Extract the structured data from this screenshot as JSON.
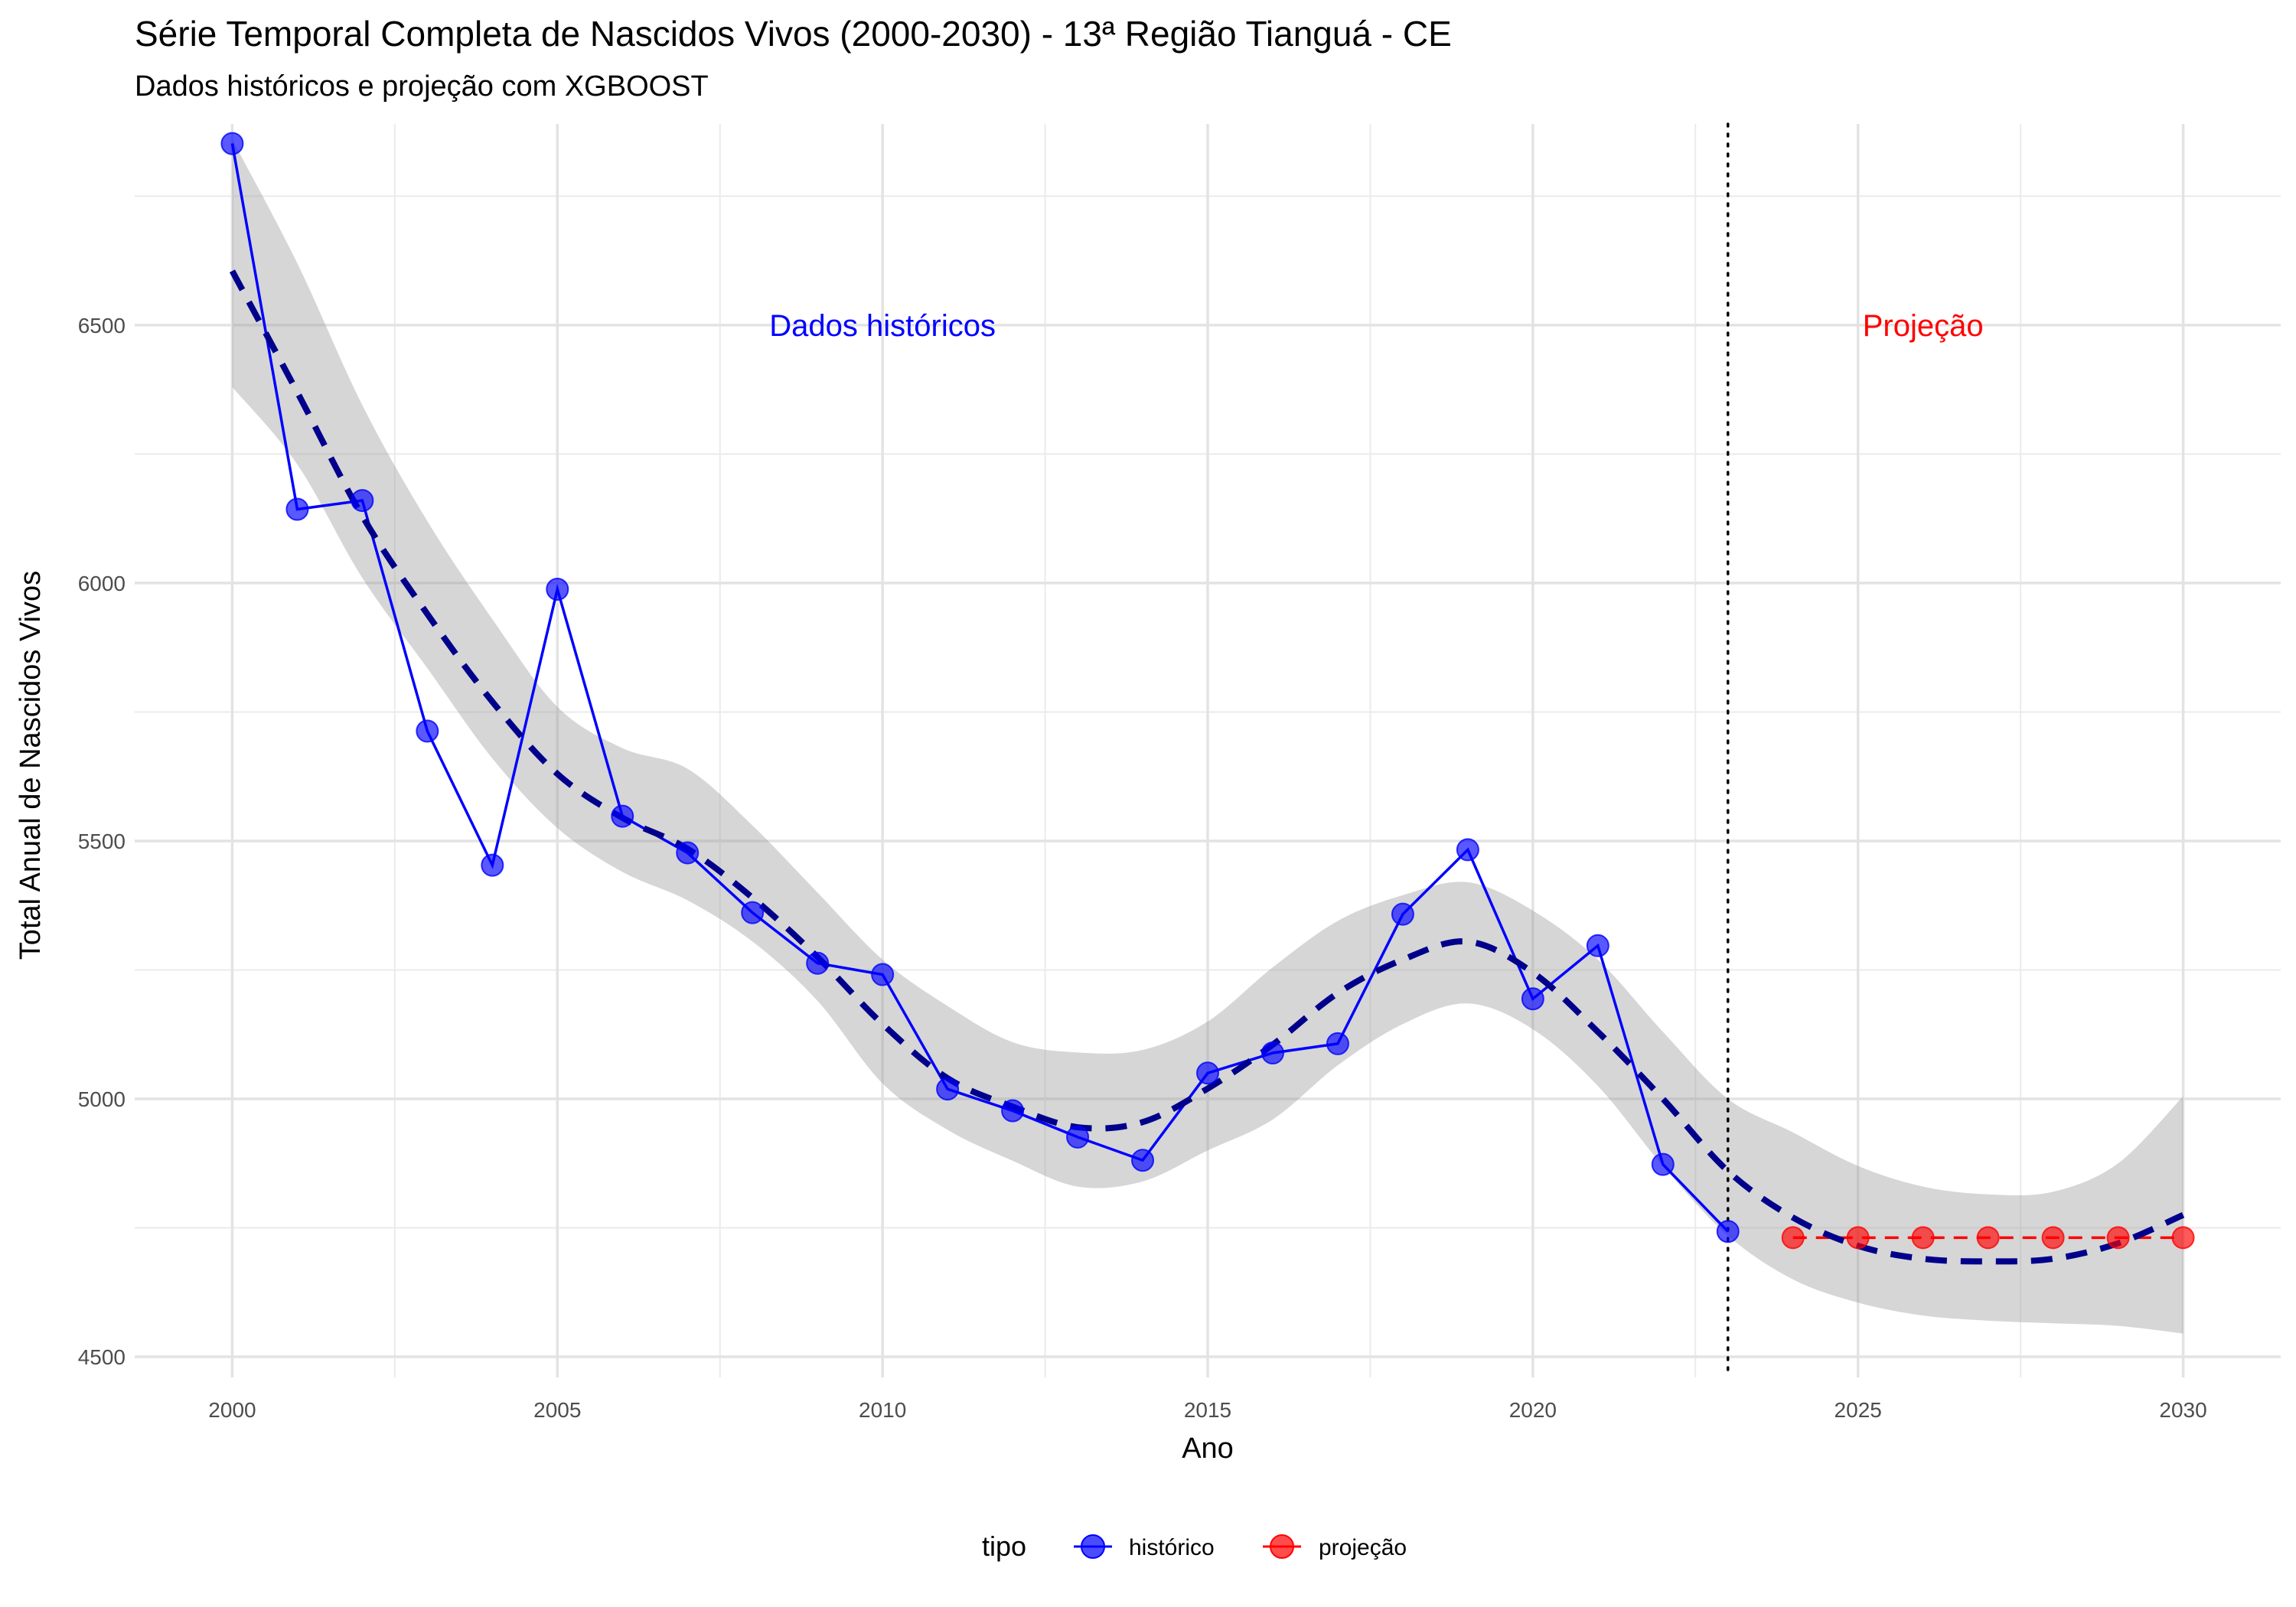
{
  "chart_data": {
    "type": "line",
    "title": "Série Temporal Completa de Nascidos Vivos (2000-2030) -  13ª Região Tianguá - CE",
    "subtitle": "Dados históricos e projeção com XGBOOST",
    "xlabel": "Ano",
    "ylabel": "Total Anual de Nascidos Vivos",
    "xlim": [
      1998.5,
      2031.5
    ],
    "ylim": [
      4460,
      6890
    ],
    "x_ticks": [
      2000,
      2005,
      2010,
      2015,
      2020,
      2025,
      2030
    ],
    "y_ticks": [
      4500,
      5000,
      5500,
      6000,
      6500
    ],
    "grid": true,
    "legend": {
      "title": "tipo",
      "position": "bottom",
      "entries": [
        {
          "label": "histórico",
          "color": "#0000ff"
        },
        {
          "label": "projeção",
          "color": "#ff0000"
        }
      ]
    },
    "annotations": [
      {
        "text": "Dados históricos",
        "x": 2010,
        "y": 6500,
        "color": "#0000ff"
      },
      {
        "text": "Projeção",
        "x": 2026,
        "y": 6500,
        "color": "#ff0000"
      }
    ],
    "vline": {
      "x": 2023,
      "style": "dotted"
    },
    "series": [
      {
        "name": "histórico",
        "color": "#0000ff",
        "x": [
          2000,
          2001,
          2002,
          2003,
          2004,
          2005,
          2006,
          2007,
          2008,
          2009,
          2010,
          2011,
          2012,
          2013,
          2014,
          2015,
          2016,
          2017,
          2018,
          2019,
          2020,
          2021,
          2022,
          2023
        ],
        "y": [
          6852,
          6143,
          6160,
          5713,
          5453,
          5988,
          5548,
          5477,
          5361,
          5263,
          5241,
          5019,
          4977,
          4926,
          4881,
          5050,
          5089,
          5107,
          5358,
          5483,
          5194,
          5297,
          4873,
          4743
        ]
      },
      {
        "name": "projeção",
        "color": "#ff0000",
        "x": [
          2024,
          2025,
          2026,
          2027,
          2028,
          2029,
          2030
        ],
        "y": [
          4731,
          4731,
          4731,
          4731,
          4731,
          4731,
          4731
        ]
      }
    ],
    "trend": {
      "x": [
        2000,
        2001,
        2002,
        2003,
        2004,
        2005,
        2006,
        2007,
        2008,
        2009,
        2010,
        2011,
        2012,
        2013,
        2014,
        2015,
        2016,
        2017,
        2018,
        2019,
        2020,
        2021,
        2022,
        2023,
        2024,
        2025,
        2026,
        2027,
        2028,
        2029,
        2030
      ],
      "y": [
        6605,
        6370,
        6130,
        5940,
        5770,
        5630,
        5545,
        5485,
        5390,
        5275,
        5145,
        5040,
        4985,
        4945,
        4955,
        5020,
        5105,
        5205,
        5270,
        5305,
        5245,
        5130,
        5000,
        4860,
        4770,
        4715,
        4690,
        4685,
        4690,
        4720,
        4775
      ],
      "band_low": [
        6380,
        6230,
        6010,
        5835,
        5660,
        5525,
        5440,
        5385,
        5305,
        5190,
        5030,
        4940,
        4880,
        4830,
        4840,
        4900,
        4960,
        5065,
        5145,
        5185,
        5135,
        5025,
        4870,
        4735,
        4650,
        4605,
        4580,
        4570,
        4565,
        4560,
        4545
      ],
      "band_high": [
        6860,
        6620,
        6345,
        6120,
        5930,
        5760,
        5680,
        5640,
        5530,
        5400,
        5270,
        5180,
        5110,
        5090,
        5095,
        5150,
        5255,
        5345,
        5395,
        5420,
        5365,
        5270,
        5130,
        5000,
        4935,
        4870,
        4830,
        4815,
        4820,
        4875,
        5005
      ]
    }
  }
}
